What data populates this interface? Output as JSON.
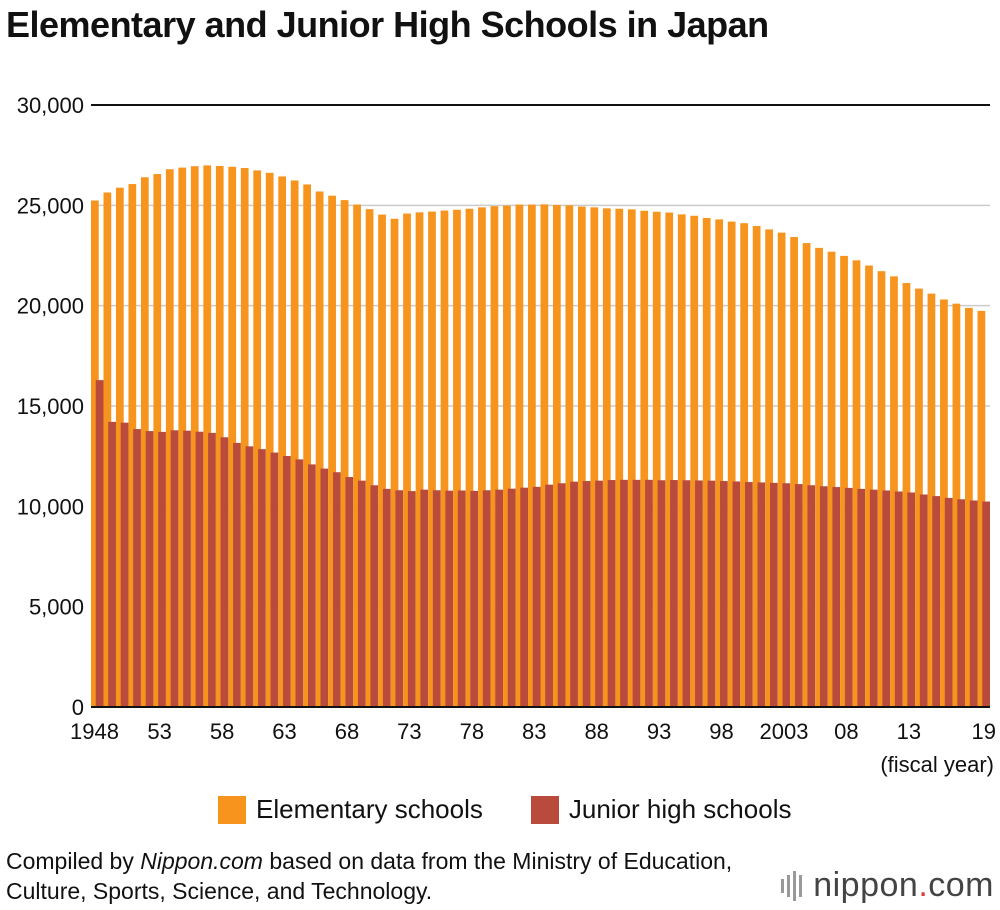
{
  "title": "Elementary and Junior High Schools in Japan",
  "chart_data": {
    "type": "bar",
    "title": "Elementary and Junior High Schools in Japan",
    "xlabel": "(fiscal year)",
    "ylabel": "",
    "ylim": [
      0,
      30000
    ],
    "yticks": [
      0,
      5000,
      10000,
      15000,
      20000,
      25000,
      30000
    ],
    "ytick_labels": [
      "0",
      "5,000",
      "10,000",
      "15,000",
      "20,000",
      "25,000",
      "30,000"
    ],
    "grid": true,
    "x": [
      1948,
      1949,
      1950,
      1951,
      1952,
      1953,
      1954,
      1955,
      1956,
      1957,
      1958,
      1959,
      1960,
      1961,
      1962,
      1963,
      1964,
      1965,
      1966,
      1967,
      1968,
      1969,
      1970,
      1971,
      1972,
      1973,
      1974,
      1975,
      1976,
      1977,
      1978,
      1979,
      1980,
      1981,
      1982,
      1983,
      1984,
      1985,
      1986,
      1987,
      1988,
      1989,
      1990,
      1991,
      1992,
      1993,
      1994,
      1995,
      1996,
      1997,
      1998,
      1999,
      2000,
      2001,
      2002,
      2003,
      2004,
      2005,
      2006,
      2007,
      2008,
      2009,
      2010,
      2011,
      2012,
      2013,
      2014,
      2015,
      2016,
      2017,
      2018,
      2019
    ],
    "xtick_labels": [
      {
        "x": 1948,
        "label": "1948"
      },
      {
        "x": 1953,
        "label": "53"
      },
      {
        "x": 1958,
        "label": "58"
      },
      {
        "x": 1963,
        "label": "63"
      },
      {
        "x": 1968,
        "label": "68"
      },
      {
        "x": 1973,
        "label": "73"
      },
      {
        "x": 1978,
        "label": "78"
      },
      {
        "x": 1983,
        "label": "83"
      },
      {
        "x": 1988,
        "label": "88"
      },
      {
        "x": 1993,
        "label": "93"
      },
      {
        "x": 1998,
        "label": "98"
      },
      {
        "x": 2003,
        "label": "2003"
      },
      {
        "x": 2008,
        "label": "08"
      },
      {
        "x": 2013,
        "label": "13"
      },
      {
        "x": 2019,
        "label": "19"
      }
    ],
    "series": [
      {
        "name": "Elementary schools",
        "color": "#f7941d",
        "values": [
          25240,
          25640,
          25880,
          26060,
          26400,
          26560,
          26800,
          26880,
          26950,
          26990,
          26960,
          26920,
          26860,
          26740,
          26620,
          26440,
          26240,
          26040,
          25690,
          25480,
          25260,
          25040,
          24810,
          24540,
          24330,
          24590,
          24650,
          24690,
          24740,
          24780,
          24830,
          24900,
          24960,
          24990,
          25040,
          25040,
          25050,
          25020,
          25000,
          24940,
          24900,
          24850,
          24830,
          24800,
          24730,
          24680,
          24640,
          24550,
          24480,
          24370,
          24300,
          24190,
          24110,
          23970,
          23800,
          23640,
          23420,
          23120,
          22880,
          22690,
          22480,
          22260,
          22000,
          21720,
          21460,
          21130,
          20850,
          20600,
          20310,
          20100,
          19890,
          19740
        ]
      },
      {
        "name": "Junior high schools",
        "color": "#b84b3c",
        "values": [
          16290,
          14210,
          14170,
          13850,
          13750,
          13710,
          13790,
          13770,
          13720,
          13660,
          13440,
          13160,
          12990,
          12850,
          12680,
          12510,
          12340,
          12090,
          11880,
          11700,
          11460,
          11280,
          11050,
          10870,
          10800,
          10760,
          10830,
          10800,
          10780,
          10790,
          10770,
          10800,
          10830,
          10880,
          10930,
          10970,
          11080,
          11150,
          11230,
          11260,
          11280,
          11310,
          11320,
          11320,
          11320,
          11300,
          11310,
          11300,
          11290,
          11280,
          11260,
          11240,
          11210,
          11190,
          11170,
          11150,
          11110,
          11050,
          11000,
          10960,
          10920,
          10870,
          10830,
          10790,
          10740,
          10690,
          10590,
          10510,
          10420,
          10350,
          10290,
          10240
        ]
      }
    ]
  },
  "legend": [
    {
      "label": "Elementary schools",
      "color": "#f7941d"
    },
    {
      "label": "Junior high schools",
      "color": "#b84b3c"
    }
  ],
  "source": {
    "prefix": "Compiled by ",
    "site": "Nippon.com",
    "suffix": " based on data from the Ministry of Education, Culture, Sports, Science, and Technology."
  },
  "brand": {
    "name": "nippon",
    "dot": ".",
    "tld": "com"
  }
}
